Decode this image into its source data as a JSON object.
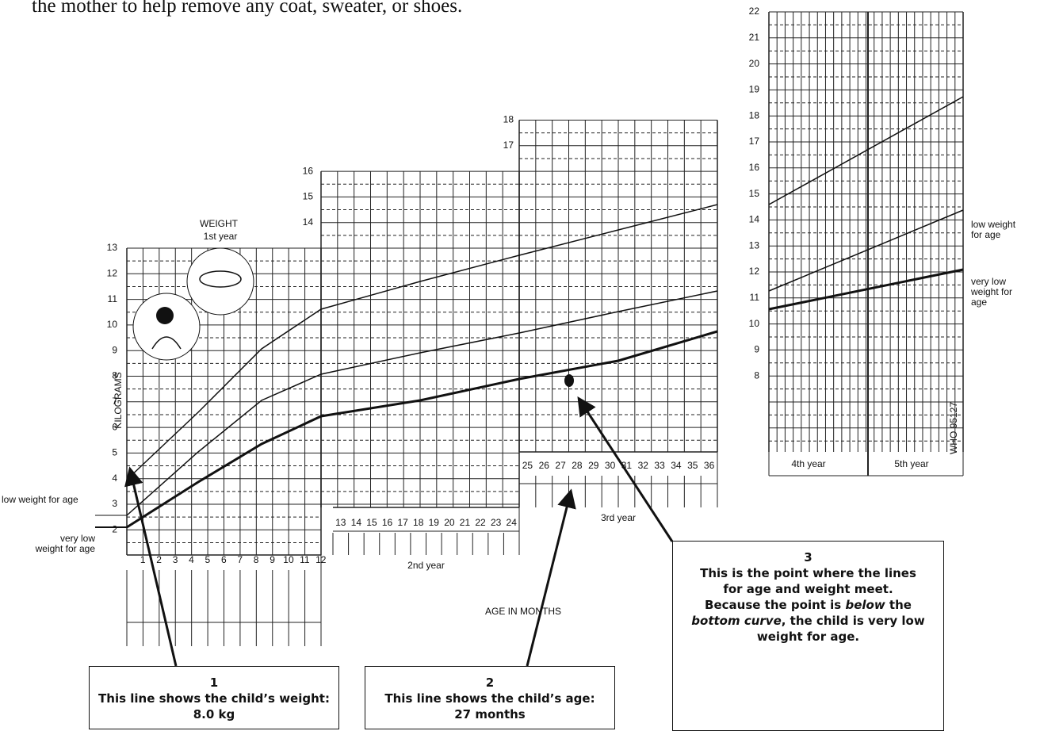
{
  "intro": "the mother to help remove any coat, sweater, or shoes.",
  "chart": {
    "title": "WEIGHT",
    "subtitle": "1st year",
    "y_label": "KILOGRAMS",
    "x_label": "AGE IN MONTHS",
    "year1": {
      "kg": [
        13,
        12,
        11,
        10,
        9,
        8,
        7,
        6,
        5,
        4,
        3,
        2
      ],
      "months": [
        1,
        2,
        3,
        4,
        5,
        6,
        7,
        8,
        9,
        10,
        11,
        12
      ]
    },
    "year2": {
      "kg": [
        16,
        15,
        14
      ],
      "months": [
        13,
        14,
        15,
        16,
        17,
        18,
        19,
        20,
        21,
        22,
        23,
        24
      ],
      "label": "2nd year"
    },
    "year3": {
      "kg": [
        18,
        17
      ],
      "months": [
        25,
        26,
        27,
        28,
        29,
        30,
        31,
        32,
        33,
        34,
        35,
        36
      ],
      "label": "3rd year"
    },
    "low_label": "low weight for age",
    "very_low_label": [
      "very low",
      "weight for age"
    ]
  },
  "chart_right": {
    "kg": [
      22,
      21,
      20,
      19,
      18,
      17,
      16,
      15,
      14,
      13,
      12,
      11,
      10,
      9,
      8
    ],
    "years": [
      "4th year",
      "5th year"
    ],
    "low_label": [
      "low weight",
      "for age"
    ],
    "very_low_label": [
      "very low",
      "weight for",
      "age"
    ],
    "code": "WHO 95127"
  },
  "callouts": [
    {
      "number": "1",
      "lines": [
        [
          {
            "text": "This line shows the child’s weight:",
            "italic": false
          }
        ],
        [
          {
            "text": "8.0 kg",
            "italic": false
          }
        ]
      ]
    },
    {
      "number": "2",
      "lines": [
        [
          {
            "text": "This line shows the child’s age:",
            "italic": false
          }
        ],
        [
          {
            "text": "27 months",
            "italic": false
          }
        ]
      ]
    },
    {
      "number": "3",
      "lines": [
        [
          {
            "text": "This is the point where the lines",
            "italic": false
          }
        ],
        [
          {
            "text": "for age and weight meet.",
            "italic": false
          }
        ],
        [
          {
            "text": "Because the point is ",
            "italic": false
          },
          {
            "text": "below",
            "italic": true
          },
          {
            "text": " the",
            "italic": false
          }
        ],
        [
          {
            "text": "bottom curve",
            "italic": true
          },
          {
            "text": ", the child is very low",
            "italic": false
          }
        ],
        [
          {
            "text": "weight for age.",
            "italic": false
          }
        ]
      ]
    }
  ]
}
